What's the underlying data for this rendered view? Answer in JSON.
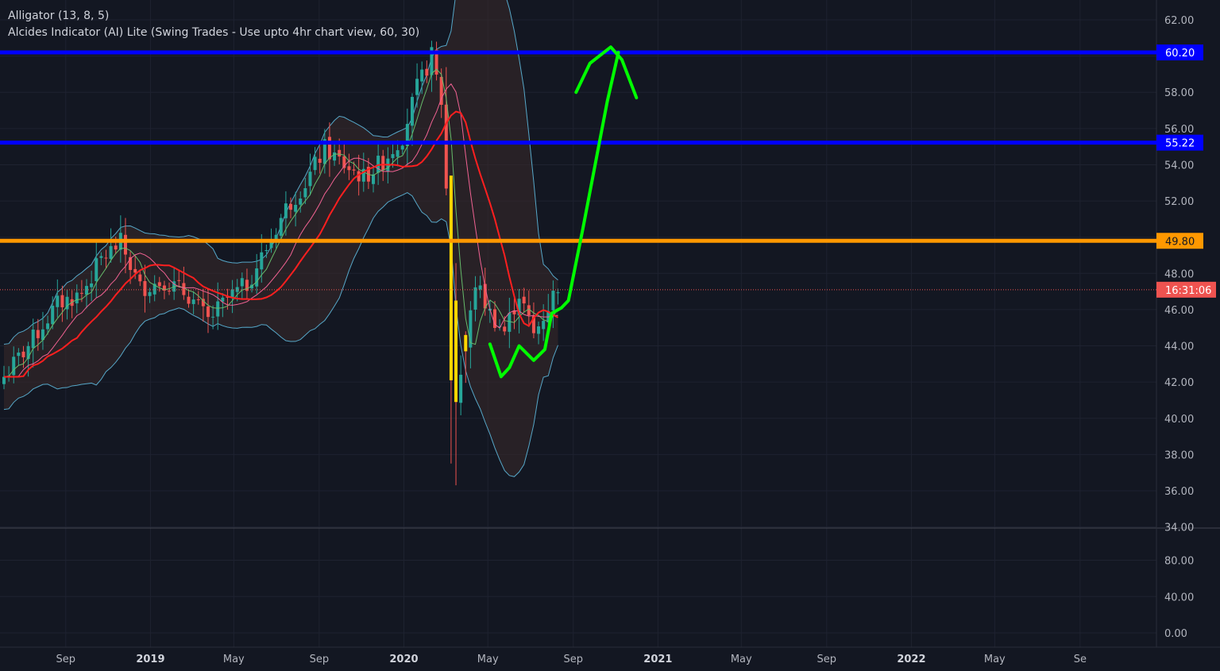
{
  "indicators": [
    "Alligator (13, 8, 5)",
    "Alcides Indicator (AI) Lite (Swing Trades - Use upto 4hr chart view, 60, 30)"
  ],
  "colors": {
    "background": "#131722",
    "grid": "#1e2230",
    "up_candle": "#26a69a",
    "down_candle": "#ef5350",
    "highlight_candle": "#ffd600",
    "level_blue": "#0000ff",
    "level_orange": "#ff9800",
    "price_tag": "#ef5350",
    "drawing": "#00ff00",
    "band_fill": "#3b2a2a",
    "band_line": "#56a7c8"
  },
  "chart_data": [
    {
      "type": "candlestick",
      "title": "",
      "xlabel": "",
      "ylabel": "",
      "ylim": [
        33.5,
        63
      ],
      "x_range": [
        "2018-06-04",
        "2022-12-20"
      ],
      "y_ticks": [
        "62.00",
        "60.00",
        "58.00",
        "56.00",
        "54.00",
        "52.00",
        "50.00",
        "48.00",
        "46.00",
        "44.00",
        "42.00",
        "40.00",
        "38.00",
        "36.00",
        "34.00"
      ],
      "x_ticks": [
        {
          "label": "Sep",
          "date": "2018-09-01"
        },
        {
          "label": "2019",
          "date": "2019-01-01",
          "bold": true
        },
        {
          "label": "May",
          "date": "2019-05-01"
        },
        {
          "label": "Sep",
          "date": "2019-09-01"
        },
        {
          "label": "2020",
          "date": "2020-01-01",
          "bold": true
        },
        {
          "label": "May",
          "date": "2020-05-01"
        },
        {
          "label": "Sep",
          "date": "2020-09-01"
        },
        {
          "label": "2021",
          "date": "2021-01-01",
          "bold": true
        },
        {
          "label": "May",
          "date": "2021-05-01"
        },
        {
          "label": "Sep",
          "date": "2021-09-01"
        },
        {
          "label": "2022",
          "date": "2022-01-01",
          "bold": true
        },
        {
          "label": "May",
          "date": "2022-05-01"
        },
        {
          "label": "Se",
          "date": "2022-09-01"
        }
      ],
      "horizontal_levels": [
        {
          "label": "60.20",
          "value": 60.2,
          "color": "#0000ff"
        },
        {
          "label": "55.22",
          "value": 55.22,
          "color": "#0000ff"
        },
        {
          "label": "49.80",
          "value": 49.8,
          "color": "#ff9800"
        }
      ],
      "price_tag": {
        "label": "16:31:06",
        "value": 47.1
      },
      "anchors": [
        {
          "date": "2018-06-04",
          "close": 42.3
        },
        {
          "date": "2018-07-09",
          "close": 44.0
        },
        {
          "date": "2018-08-20",
          "close": 46.3
        },
        {
          "date": "2018-09-24",
          "close": 46.9
        },
        {
          "date": "2018-10-22",
          "close": 48.8
        },
        {
          "date": "2018-11-19",
          "close": 49.7
        },
        {
          "date": "2018-12-17",
          "close": 47.2
        },
        {
          "date": "2019-01-21",
          "close": 47.6
        },
        {
          "date": "2019-02-25",
          "close": 46.8
        },
        {
          "date": "2019-03-25",
          "close": 45.4
        },
        {
          "date": "2019-04-22",
          "close": 46.6
        },
        {
          "date": "2019-05-20",
          "close": 47.4
        },
        {
          "date": "2019-06-17",
          "close": 49.4
        },
        {
          "date": "2019-07-15",
          "close": 51.6
        },
        {
          "date": "2019-08-12",
          "close": 53.0
        },
        {
          "date": "2019-09-09",
          "close": 54.9
        },
        {
          "date": "2019-10-07",
          "close": 54.0
        },
        {
          "date": "2019-11-04",
          "close": 53.3
        },
        {
          "date": "2019-12-02",
          "close": 54.2
        },
        {
          "date": "2019-12-30",
          "close": 55.6
        },
        {
          "date": "2020-01-20",
          "close": 58.2
        },
        {
          "date": "2020-02-10",
          "close": 60.0
        },
        {
          "date": "2020-02-24",
          "close": 57.5
        },
        {
          "date": "2020-03-09",
          "close": 47.8
        },
        {
          "date": "2020-03-16",
          "close": 41.1
        },
        {
          "date": "2020-03-30",
          "close": 43.9
        },
        {
          "date": "2020-04-13",
          "close": 47.5
        },
        {
          "date": "2020-05-04",
          "close": 45.8
        },
        {
          "date": "2020-05-25",
          "close": 44.8
        },
        {
          "date": "2020-06-15",
          "close": 46.9
        },
        {
          "date": "2020-07-06",
          "close": 44.6
        },
        {
          "date": "2020-07-27",
          "close": 46.2
        },
        {
          "date": "2020-08-10",
          "close": 47.4
        }
      ],
      "highlight_candles": [
        {
          "date": "2020-03-09",
          "open": 53.4,
          "close": 42.1
        },
        {
          "date": "2020-03-16",
          "open": 46.5,
          "close": 40.9
        },
        {
          "date": "2020-03-30",
          "open": 44.6,
          "close": 43.7
        }
      ],
      "projection_path": [
        {
          "date": "2020-05-04",
          "value": 44.1
        },
        {
          "date": "2020-05-20",
          "value": 42.3
        },
        {
          "date": "2020-06-01",
          "value": 42.8
        },
        {
          "date": "2020-06-15",
          "value": 44.0
        },
        {
          "date": "2020-07-06",
          "value": 43.2
        },
        {
          "date": "2020-07-22",
          "value": 43.8
        },
        {
          "date": "2020-08-01",
          "value": 45.8
        },
        {
          "date": "2020-08-15",
          "value": 46.1
        },
        {
          "date": "2020-08-25",
          "value": 46.5
        },
        {
          "date": "2020-09-15",
          "value": 50.5
        },
        {
          "date": "2020-10-05",
          "value": 54.5
        },
        {
          "date": "2020-10-20",
          "value": 57.5
        },
        {
          "date": "2020-11-05",
          "value": 60.2
        },
        {
          "date": "2020-09-05",
          "value": 58.0
        },
        {
          "date": "2020-09-25",
          "value": 59.6
        },
        {
          "date": "2020-10-25",
          "value": 60.5
        },
        {
          "date": "2020-11-10",
          "value": 59.8
        },
        {
          "date": "2020-12-01",
          "value": 57.7
        }
      ]
    },
    {
      "type": "line",
      "title": "",
      "ylim": [
        -8,
        112
      ],
      "y_ticks": [
        "80.00",
        "40.00",
        "0.00"
      ],
      "series": []
    }
  ]
}
